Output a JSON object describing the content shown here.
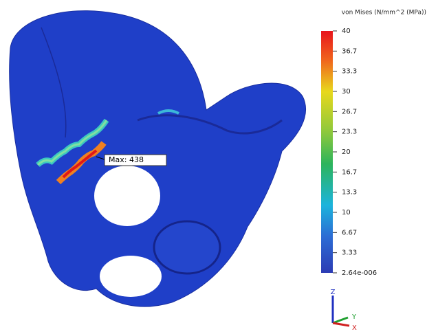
{
  "legend": {
    "title": "von Mises (N/mm^2 (MPa))",
    "ticks": [
      "40",
      "36.7",
      "33.3",
      "30",
      "26.7",
      "23.3",
      "20",
      "16.7",
      "13.3",
      "10",
      "6.67",
      "3.33",
      "2.64e-006"
    ]
  },
  "annotation": {
    "label": "Max: 438"
  },
  "triad": {
    "z": "Z",
    "y": "Y",
    "x": "X"
  }
}
